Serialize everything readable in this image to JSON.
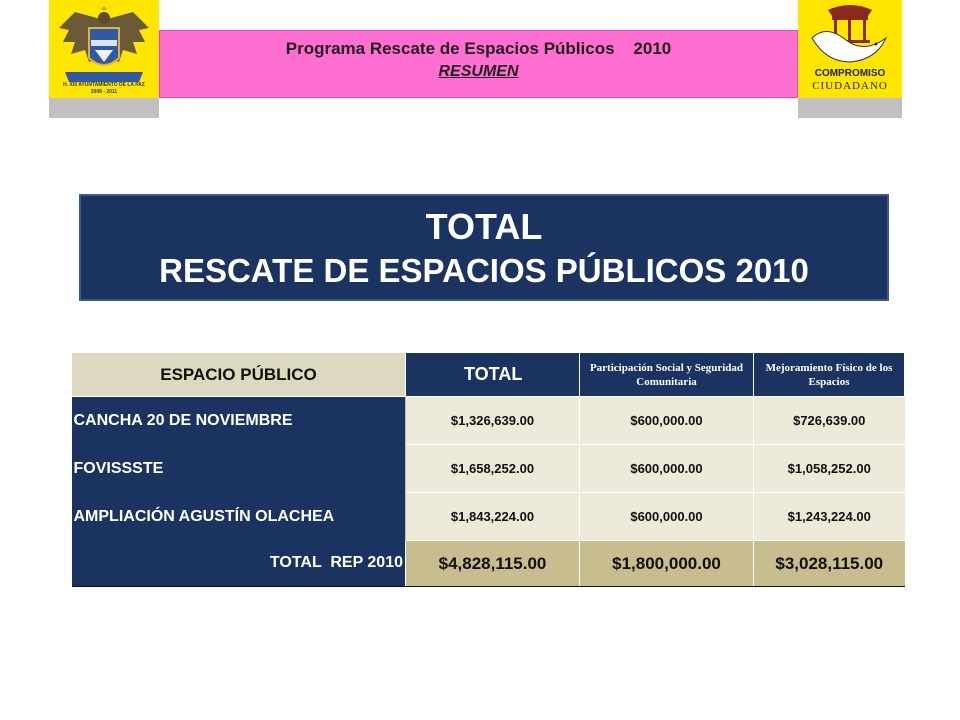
{
  "header": {
    "title": "Programa Rescate de Espacios Públicos    2010",
    "subtitle": "RESUMEN"
  },
  "logos": {
    "left": {
      "caption_line1": "H. XIII AYUNTAMIENTO DE LA PAZ",
      "caption_line2": "2008 - 2011"
    },
    "right": {
      "name_line1": "COMPROMISO",
      "name_line2": "CIUDADANO"
    }
  },
  "banner": {
    "line1": "TOTAL",
    "line2": "RESCATE DE ESPACIOS PÚBLICOS 2010"
  },
  "table": {
    "headers": [
      "ESPACIO PÚBLICO",
      "TOTAL",
      "Participación Social y Seguridad Comunitaria",
      "Mejoramiento Físico de los Espacios"
    ],
    "rows": [
      {
        "name": "CANCHA 20 DE NOVIEMBRE",
        "total": "$1,326,639.00",
        "participacion": "$600,000.00",
        "mejoramiento": "$726,639.00"
      },
      {
        "name": "FOVISSSTE",
        "total": "$1,658,252.00",
        "participacion": "$600,000.00",
        "mejoramiento": "$1,058,252.00"
      },
      {
        "name": "AMPLIACIÓN AGUSTÍN OLACHEA",
        "total": "$1,843,224.00",
        "participacion": "$600,000.00",
        "mejoramiento": "$1,243,224.00"
      }
    ],
    "total_row": {
      "label": "TOTAL  REP 2010",
      "total": "$4,828,115.00",
      "participacion": "$1,800,000.00",
      "mejoramiento": "$3,028,115.00"
    }
  },
  "colors": {
    "navy": "#1a3360",
    "pink_band": "#ff6ed0",
    "logo_yellow": "#ffe600",
    "header_beige": "#ddd8c0",
    "cell_beige": "#ece9d8",
    "total_khaki": "#c7bd8f"
  }
}
